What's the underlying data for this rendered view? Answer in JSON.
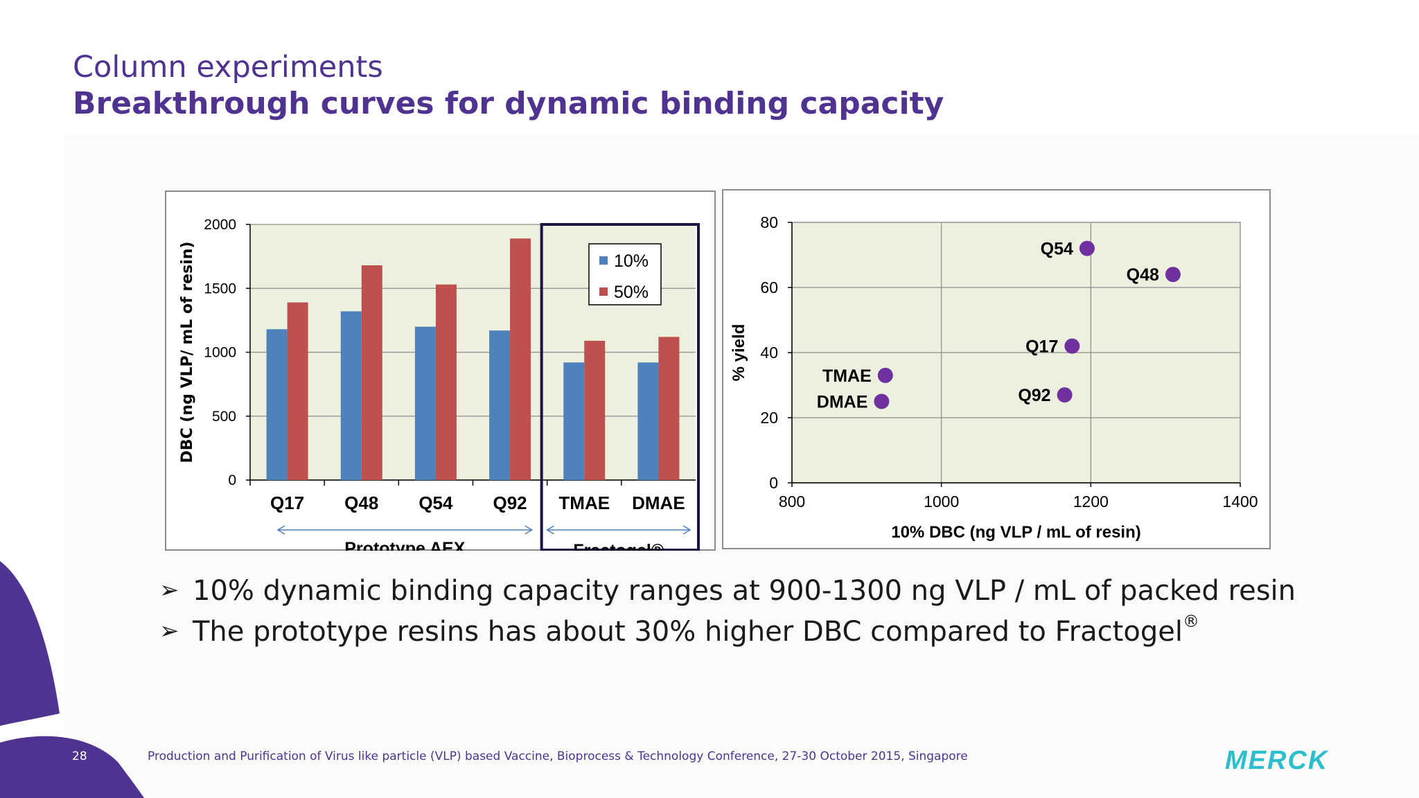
{
  "header": {
    "title": "Column experiments",
    "subtitle": "Breakthrough curves for dynamic binding capacity"
  },
  "chart_data": [
    {
      "type": "bar",
      "categories": [
        "Q17",
        "Q48",
        "Q54",
        "Q92",
        "TMAE",
        "DMAE"
      ],
      "series": [
        {
          "name": "10%",
          "values": [
            1180,
            1320,
            1200,
            1170,
            920,
            920
          ],
          "color": "#4f81bd"
        },
        {
          "name": "50%",
          "values": [
            1390,
            1680,
            1530,
            1890,
            1090,
            1120
          ],
          "color": "#c0504d"
        }
      ],
      "ylabel": "DBC (ng  VLP/ mL of resin)",
      "ylim": [
        0,
        2000
      ],
      "yticks": [
        0,
        500,
        1000,
        1500,
        2000
      ],
      "groups": [
        {
          "label": "Prototype AEX",
          "categories": [
            "Q17",
            "Q48",
            "Q54",
            "Q92"
          ]
        },
        {
          "label": "Fractogel®",
          "categories": [
            "TMAE",
            "DMAE"
          ]
        }
      ],
      "legend_position": "top-right",
      "grid": true
    },
    {
      "type": "scatter",
      "points": [
        {
          "label": "Q54",
          "x": 1195,
          "y": 72
        },
        {
          "label": "Q48",
          "x": 1310,
          "y": 64
        },
        {
          "label": "Q17",
          "x": 1175,
          "y": 42
        },
        {
          "label": "TMAE",
          "x": 925,
          "y": 33
        },
        {
          "label": "DMAE",
          "x": 920,
          "y": 25
        },
        {
          "label": "Q92",
          "x": 1165,
          "y": 27
        }
      ],
      "xlabel": "10% DBC (ng VLP / mL of resin)",
      "ylabel": "% yield",
      "xlim": [
        800,
        1400
      ],
      "ylim": [
        0,
        80
      ],
      "xticks": [
        800,
        1000,
        1200,
        1400
      ],
      "yticks": [
        0,
        20,
        40,
        60,
        80
      ],
      "marker_color": "#7030a0",
      "grid": true
    }
  ],
  "bullets": [
    {
      "text": "10% dynamic binding capacity ranges at 900-1300 ng VLP / mL of packed resin",
      "sup": ""
    },
    {
      "text": "The prototype resins has about 30% higher DBC compared to Fractogel",
      "sup": "®"
    }
  ],
  "bullet_icon": "arrow-bullet-icon",
  "footer": {
    "page_number": "28",
    "text": "Production and Purification of Virus like particle (VLP) based Vaccine, Bioprocess & Technology Conference, 27-30 October 2015, Singapore"
  },
  "logo": {
    "text": "MERCK",
    "color": "#2dbecd"
  },
  "colors": {
    "brand": "#503291",
    "accent": "#2dbecd"
  }
}
